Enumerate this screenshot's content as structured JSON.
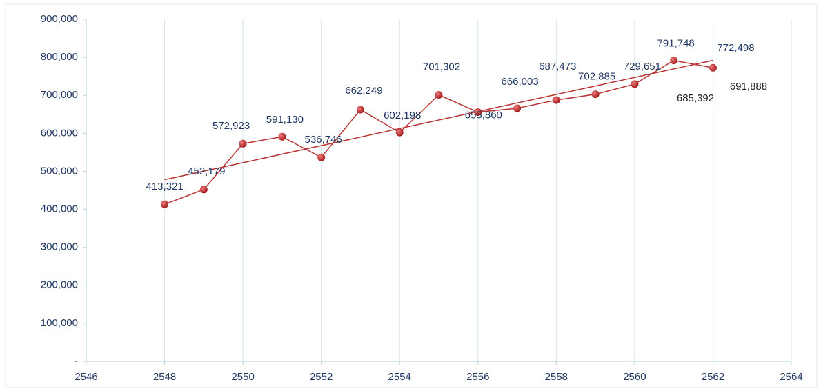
{
  "chart_data": {
    "type": "line",
    "x": [
      2548,
      2549,
      2550,
      2551,
      2552,
      2553,
      2554,
      2555,
      2556,
      2557,
      2558,
      2559,
      2560,
      2561,
      2562
    ],
    "series": [
      {
        "color": "#b83232",
        "values": [
          413321,
          452179,
          572923,
          591130,
          536746,
          662249,
          602198,
          701302,
          655860,
          666003,
          687473,
          702885,
          729651,
          791748,
          772498
        ],
        "value_labels": [
          "413,321",
          "452,179",
          "572,923",
          "591,130",
          "536,746",
          "662,249",
          "602,198",
          "701,302",
          "655,860",
          "666,003",
          "687,473",
          "702,885",
          "729,651",
          "791,748",
          "772,498"
        ]
      }
    ],
    "trendline": {
      "color": "#b83232",
      "x": [
        2548,
        2562
      ],
      "values": [
        478000,
        792000
      ]
    },
    "annotations": [
      "685,392",
      "691,888"
    ],
    "xlim": [
      2546,
      2564
    ],
    "xticks": [
      2546,
      2548,
      2550,
      2552,
      2554,
      2556,
      2558,
      2560,
      2562,
      2564
    ],
    "ylim": [
      0,
      900000
    ],
    "yticks": [
      {
        "value": 0,
        "label": "-"
      },
      {
        "value": 100000,
        "label": "100,000"
      },
      {
        "value": 200000,
        "label": "200,000"
      },
      {
        "value": 300000,
        "label": "300,000"
      },
      {
        "value": 400000,
        "label": "400,000"
      },
      {
        "value": 500000,
        "label": "500,000"
      },
      {
        "value": 600000,
        "label": "600,000"
      },
      {
        "value": 700000,
        "label": "700,000"
      },
      {
        "value": 800000,
        "label": "800,000"
      },
      {
        "value": 900000,
        "label": "900,000"
      }
    ],
    "grid": "x"
  }
}
